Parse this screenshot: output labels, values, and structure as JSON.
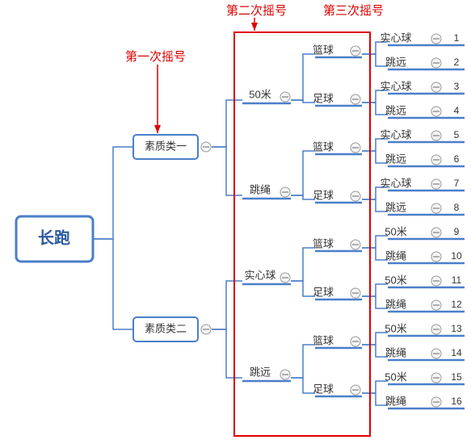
{
  "root": {
    "label": "长跑"
  },
  "annotations": {
    "first": "第一次摇号",
    "second": "第二次摇号",
    "third": "第三次摇号"
  },
  "level1": [
    {
      "label": "素质类一"
    },
    {
      "label": "素质类二"
    }
  ],
  "l2_top": [
    {
      "label": "50米"
    },
    {
      "label": "跳绳"
    }
  ],
  "l2_bot": [
    {
      "label": "实心球"
    },
    {
      "label": "跳远"
    }
  ],
  "l3_items": [
    {
      "label": "篮球"
    },
    {
      "label": "足球"
    },
    {
      "label": "篮球"
    },
    {
      "label": "足球"
    },
    {
      "label": "篮球"
    },
    {
      "label": "足球"
    },
    {
      "label": "篮球"
    },
    {
      "label": "足球"
    }
  ],
  "leaves": [
    {
      "label": "实心球",
      "num": "1"
    },
    {
      "label": "跳远",
      "num": "2"
    },
    {
      "label": "实心球",
      "num": "3"
    },
    {
      "label": "跳远",
      "num": "4"
    },
    {
      "label": "实心球",
      "num": "5"
    },
    {
      "label": "跳远",
      "num": "6"
    },
    {
      "label": "实心球",
      "num": "7"
    },
    {
      "label": "跳远",
      "num": "8"
    },
    {
      "label": "50米",
      "num": "9"
    },
    {
      "label": "跳绳",
      "num": "10"
    },
    {
      "label": "50米",
      "num": "11"
    },
    {
      "label": "跳绳",
      "num": "12"
    },
    {
      "label": "50米",
      "num": "13"
    },
    {
      "label": "跳绳",
      "num": "14"
    },
    {
      "label": "50米",
      "num": "15"
    },
    {
      "label": "跳绳",
      "num": "16"
    }
  ]
}
